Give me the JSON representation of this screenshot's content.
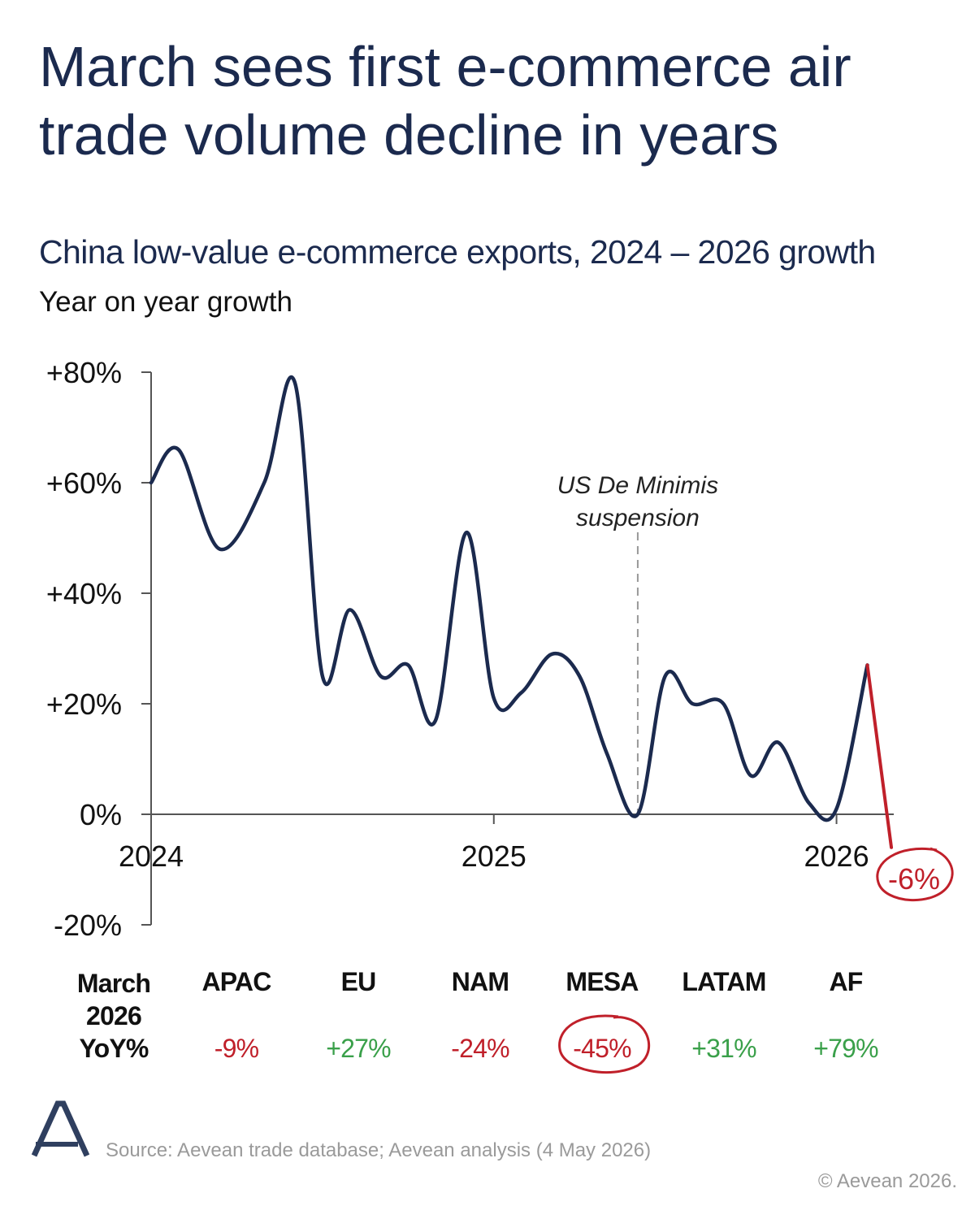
{
  "title": "March sees first e-commerce air trade volume decline in years",
  "subtitle": "China low-value e-commerce exports, 2024 – 2026 growth",
  "ylabel": "Year on year growth",
  "colors": {
    "line": "#1b2a4e",
    "highlight": "#c0202a",
    "positive": "#3aa04a",
    "negative": "#c0202a"
  },
  "chart_data": {
    "type": "line",
    "x_unit": "year",
    "xlim": [
      2024.0,
      2026.25
    ],
    "ylim": [
      -20,
      80
    ],
    "y_ticks": [
      80,
      60,
      40,
      20,
      0,
      -20
    ],
    "y_tick_labels": [
      "+80%",
      "+60%",
      "+40%",
      "+20%",
      "0%",
      "-20%"
    ],
    "x_ticks": [
      2024,
      2025,
      2026
    ],
    "x_tick_labels": [
      "2024",
      "2025",
      "2026"
    ],
    "grid": false,
    "series": [
      {
        "x": [
          2024.0,
          2024.08,
          2024.2,
          2024.33,
          2024.42,
          2024.5,
          2024.58,
          2024.67,
          2024.75,
          2024.83,
          2024.92,
          2025.0,
          2025.08,
          2025.17,
          2025.25,
          2025.33,
          2025.42,
          2025.5,
          2025.58,
          2025.67,
          2025.75,
          2025.83,
          2025.92,
          2026.0,
          2026.09
        ],
        "y": [
          60,
          66,
          48,
          60,
          78,
          25,
          37,
          25,
          27,
          17,
          51,
          21,
          22,
          29,
          25,
          11,
          0,
          25,
          20,
          20,
          7,
          13,
          2,
          1,
          27
        ]
      },
      {
        "x": [
          2026.09,
          2026.16
        ],
        "y": [
          27,
          -6
        ]
      }
    ],
    "annotations": [
      {
        "x": 2025.42,
        "text_lines": [
          "US De Minimis",
          "suspension"
        ]
      },
      {
        "x": 2026.16,
        "text": "-6%"
      }
    ]
  },
  "table": {
    "row_header_lines": [
      "March",
      "2026",
      "YoY%"
    ],
    "regions": [
      {
        "name": "APAC",
        "value": "-9%",
        "sign": "neg",
        "circled": false
      },
      {
        "name": "EU",
        "value": "+27%",
        "sign": "pos",
        "circled": false
      },
      {
        "name": "NAM",
        "value": "-24%",
        "sign": "neg",
        "circled": false
      },
      {
        "name": "MESA",
        "value": "-45%",
        "sign": "neg",
        "circled": true
      },
      {
        "name": "LATAM",
        "value": "+31%",
        "sign": "pos",
        "circled": false
      },
      {
        "name": "AF",
        "value": "+79%",
        "sign": "pos",
        "circled": false
      }
    ]
  },
  "footer": {
    "source": "Source: Aevean trade database; Aevean analysis (4 May 2026)",
    "copyright": "© Aevean 2026."
  }
}
